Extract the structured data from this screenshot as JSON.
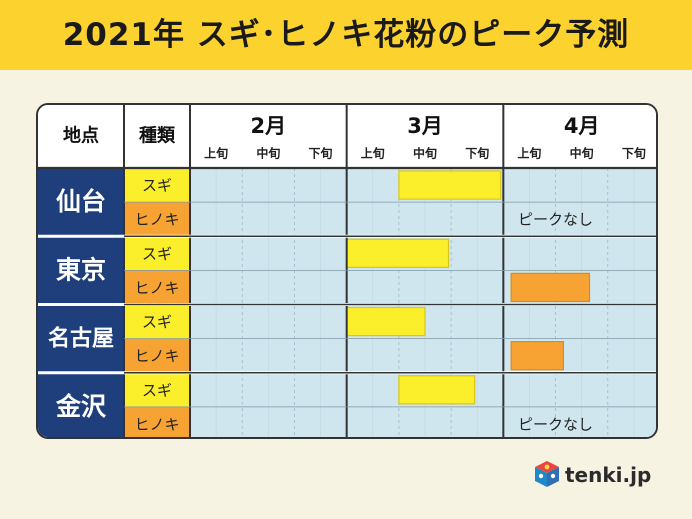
{
  "title": "2021年 スギ･ヒノキ花粉のピーク予測",
  "header": {
    "location_label": "地点",
    "type_label": "種類",
    "months": [
      "2月",
      "3月",
      "4月"
    ],
    "periods": [
      "上旬",
      "中旬",
      "下旬"
    ]
  },
  "chart_data": {
    "type": "table",
    "rows": [
      {
        "city": "仙台",
        "types": [
          {
            "name": "スギ",
            "peak": [
              "3月中旬",
              "3月下旬"
            ],
            "note": ""
          },
          {
            "name": "ヒノキ",
            "peak": [],
            "note": "ピークなし"
          }
        ]
      },
      {
        "city": "東京",
        "types": [
          {
            "name": "スギ",
            "peak": [
              "3月上旬",
              "3月中旬"
            ],
            "note": ""
          },
          {
            "name": "ヒノキ",
            "peak": [
              "4月上旬",
              "4月中旬"
            ],
            "note": ""
          }
        ]
      },
      {
        "city": "名古屋",
        "types": [
          {
            "name": "スギ",
            "peak": [
              "3月上旬",
              "3月中旬"
            ],
            "note": ""
          },
          {
            "name": "ヒノキ",
            "peak": [
              "4月上旬"
            ],
            "note": ""
          }
        ]
      },
      {
        "city": "金沢",
        "types": [
          {
            "name": "スギ",
            "peak": [
              "3月中旬",
              "3月下旬"
            ],
            "note": ""
          },
          {
            "name": "ヒノキ",
            "peak": [],
            "note": "ピークなし"
          }
        ]
      }
    ],
    "peak_spans": [
      {
        "city": "仙台",
        "type": "スギ",
        "start": 4.0,
        "end": 5.95
      },
      {
        "city": "東京",
        "type": "スギ",
        "start": 3.0,
        "end": 4.95
      },
      {
        "city": "東京",
        "type": "ヒノキ",
        "start": 6.15,
        "end": 7.65
      },
      {
        "city": "名古屋",
        "type": "スギ",
        "start": 3.0,
        "end": 4.5
      },
      {
        "city": "名古屋",
        "type": "ヒノキ",
        "start": 6.15,
        "end": 7.15
      },
      {
        "city": "金沢",
        "type": "スギ",
        "start": 4.0,
        "end": 5.45
      }
    ],
    "colors": {
      "sugi": "#fbee2a",
      "hinoki": "#f6a334",
      "city_bg": "#1f3f7c",
      "cell_bg": "#cfe6ef",
      "title_bg": "#fcd22f",
      "page_bg": "#f7f3e3"
    }
  },
  "logo": {
    "text": "tenki.jp",
    "icon": "tenki-cube-icon"
  }
}
